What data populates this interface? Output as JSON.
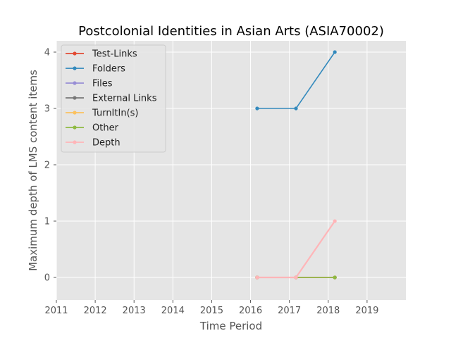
{
  "chart_data": {
    "type": "line",
    "title": "Postcolonial Identities in Asian Arts (ASIA70002)",
    "xlabel": "Time Period",
    "ylabel": "Maximum depth of LMS content items",
    "x_ticks": [
      "2011",
      "2012",
      "2013",
      "2014",
      "2015",
      "2016",
      "2017",
      "2018",
      "2019"
    ],
    "y_ticks": [
      "0",
      "1",
      "2",
      "3",
      "4"
    ],
    "xlim": [
      2011,
      2020
    ],
    "ylim": [
      -0.4,
      4.2
    ],
    "grid": true,
    "legend_position": "upper-left",
    "x": [
      2016.17,
      2017.17,
      2018.17
    ],
    "series": [
      {
        "name": "Test-Links",
        "color": "#E24A33",
        "values": [
          0,
          0,
          0
        ]
      },
      {
        "name": "Folders",
        "color": "#348ABD",
        "values": [
          3,
          3,
          4
        ]
      },
      {
        "name": "Files",
        "color": "#988ED5",
        "values": [
          0,
          0,
          0
        ]
      },
      {
        "name": "External Links",
        "color": "#777777",
        "values": [
          0,
          0,
          0
        ]
      },
      {
        "name": "TurnItIn(s)",
        "color": "#FBC15E",
        "values": [
          0,
          0,
          0
        ]
      },
      {
        "name": "Other",
        "color": "#8EBA42",
        "values": [
          0,
          0,
          0
        ]
      },
      {
        "name": "Depth",
        "color": "#FFB5B8",
        "values": [
          0,
          0,
          1
        ]
      }
    ]
  }
}
